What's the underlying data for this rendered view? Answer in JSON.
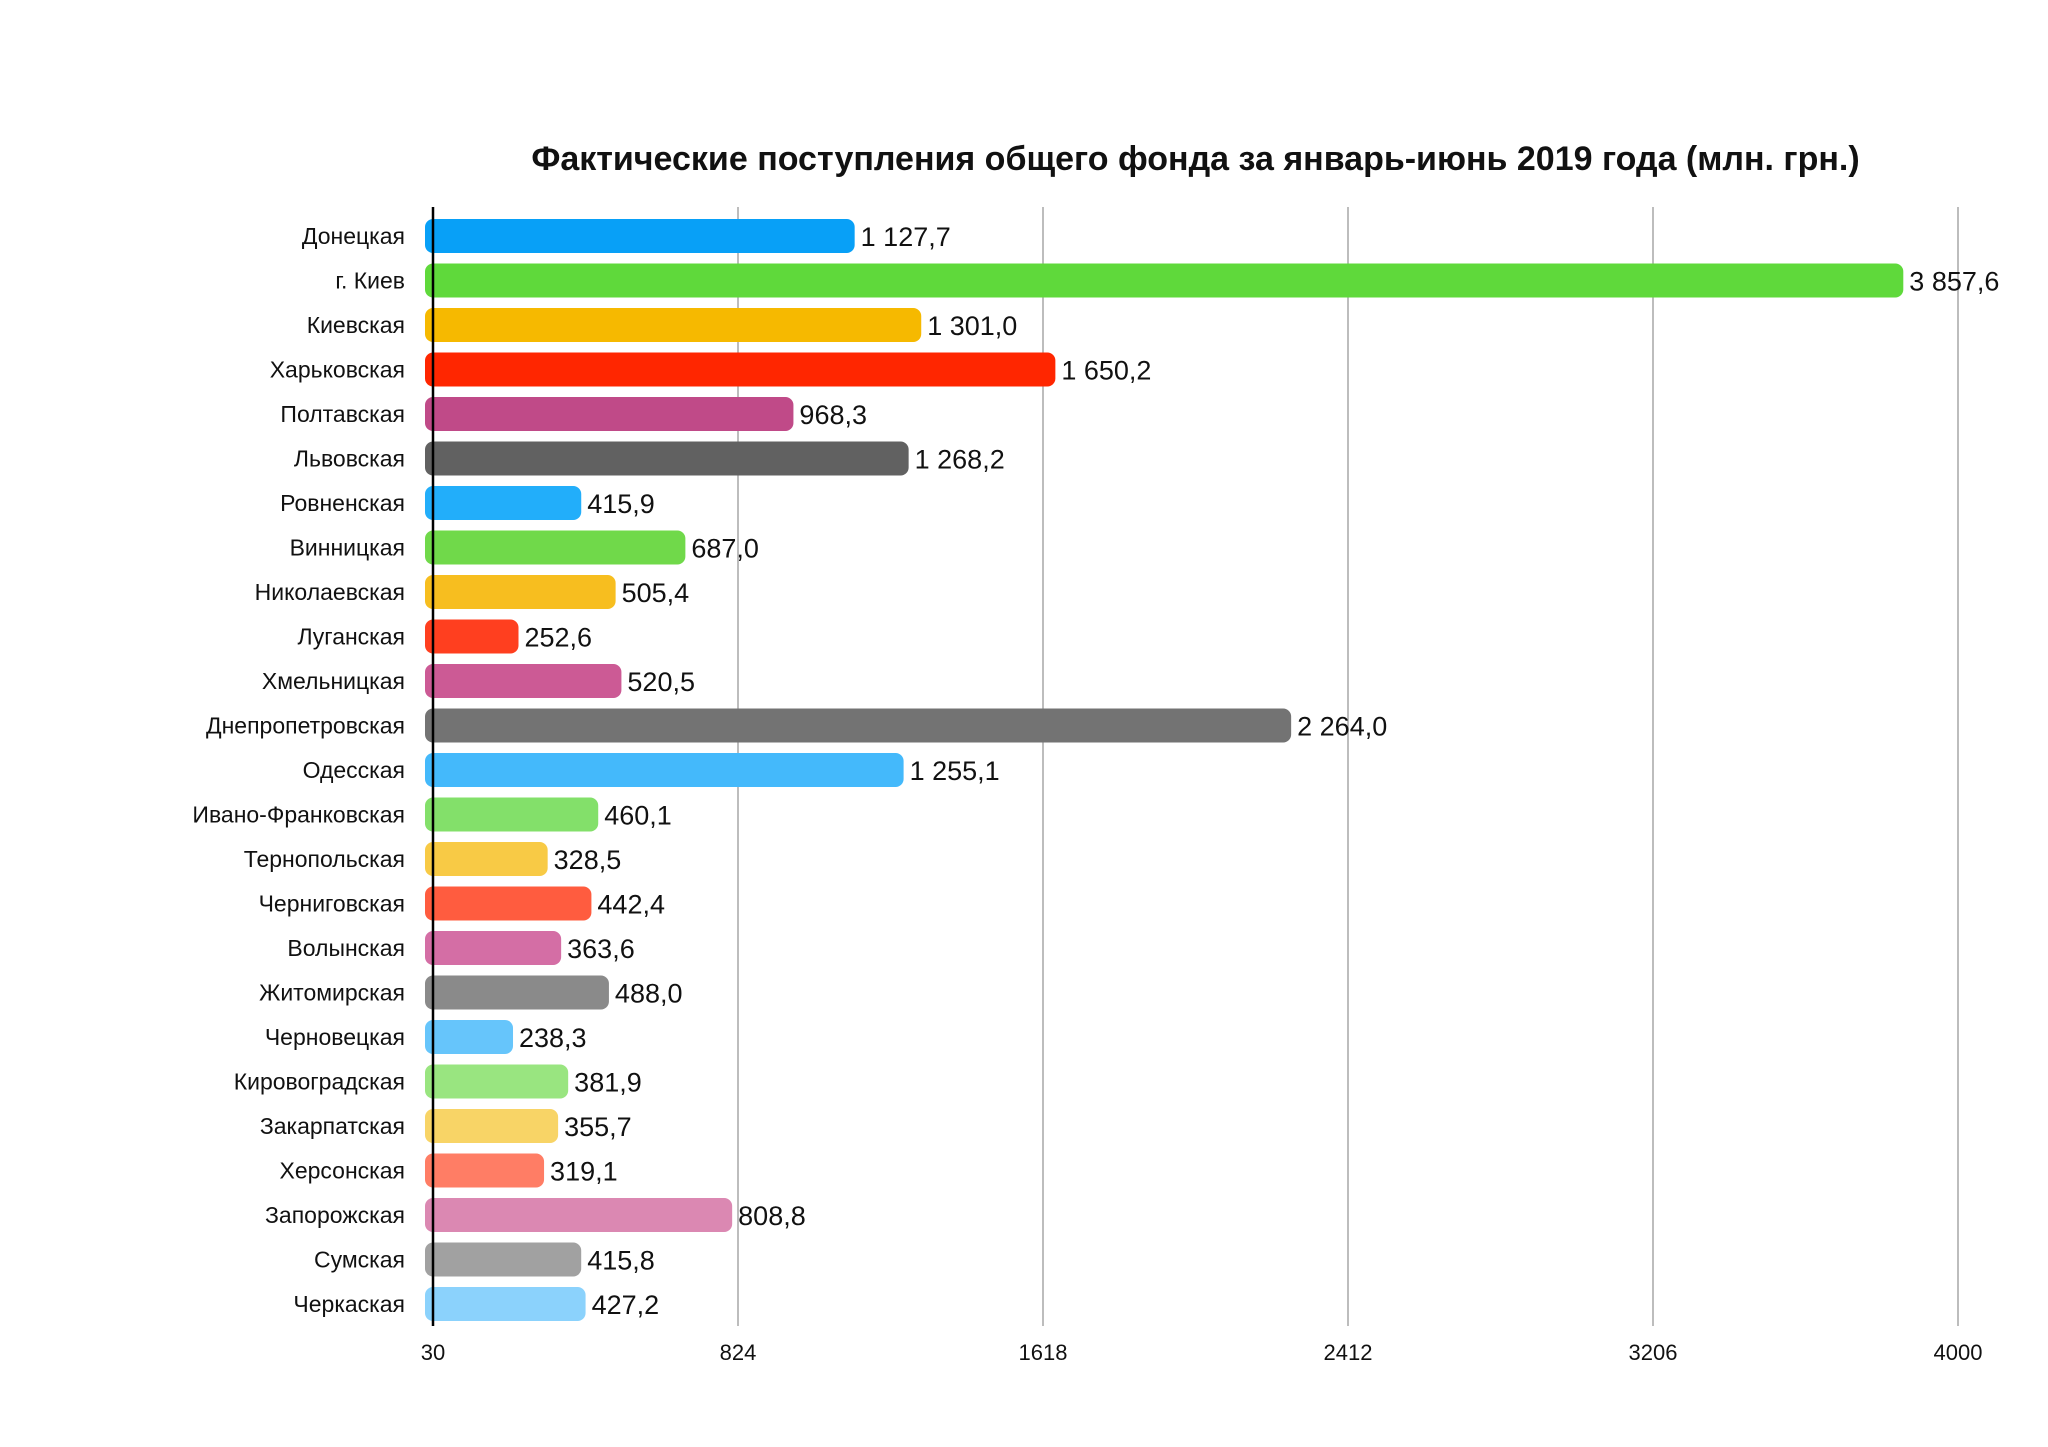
{
  "chart_data": {
    "type": "bar",
    "orientation": "horizontal",
    "title": "Фактические поступления общего фонда за январь-июнь 2019 года (млн. грн.)",
    "xlabel": "",
    "ylabel": "",
    "xlim": [
      30,
      4000
    ],
    "x_ticks": [
      "30",
      "824",
      "1618",
      "2412",
      "3206",
      "4000"
    ],
    "grid": "vertical",
    "categories": [
      "Донецкая",
      "г. Киев",
      "Киевская",
      "Харьковская",
      "Полтавская",
      "Львовская",
      "Ровненская",
      "Винницкая",
      "Николаевская",
      "Луганская",
      "Хмельницкая",
      "Днепропетровская",
      "Одесская",
      "Ивано-Франковская",
      "Тернопольская",
      "Черниговская",
      "Волынская",
      "Житомирская",
      "Черновецкая",
      "Кировоградская",
      "Закарпатская",
      "Херсонская",
      "Запорожская",
      "Сумская",
      "Черкаская"
    ],
    "values": [
      1127.7,
      3857.6,
      1301.0,
      1650.2,
      968.3,
      1268.2,
      415.9,
      687.0,
      505.4,
      252.6,
      520.5,
      2264.0,
      1255.1,
      460.1,
      328.5,
      442.4,
      363.6,
      488.0,
      238.3,
      381.9,
      355.7,
      319.1,
      808.8,
      415.8,
      427.2
    ],
    "value_labels": [
      "1 127,7",
      "3 857,6",
      "1 301,0",
      "1 650,2",
      "968,3",
      "1 268,2",
      "415,9",
      "687,0",
      "505,4",
      "252,6",
      "520,5",
      "2 264,0",
      "1 255,1",
      "460,1",
      "328,5",
      "442,4",
      "363,6",
      "488,0",
      "238,3",
      "381,9",
      "355,7",
      "319,1",
      "808,8",
      "415,8",
      "427,2"
    ],
    "colors": [
      "#08a0f7",
      "#5fd93b",
      "#f6b900",
      "#ff2600",
      "#c04a88",
      "#616161",
      "#22aefa",
      "#70d94a",
      "#f7be1f",
      "#ff3f1f",
      "#cc5a95",
      "#737373",
      "#44b9fb",
      "#83e06a",
      "#f8ca45",
      "#ff5c3f",
      "#d46ea5",
      "#8a8a8a",
      "#66c5fb",
      "#99e580",
      "#f8d466",
      "#ff7d65",
      "#db88b2",
      "#a1a1a1",
      "#8bd2fc"
    ]
  }
}
